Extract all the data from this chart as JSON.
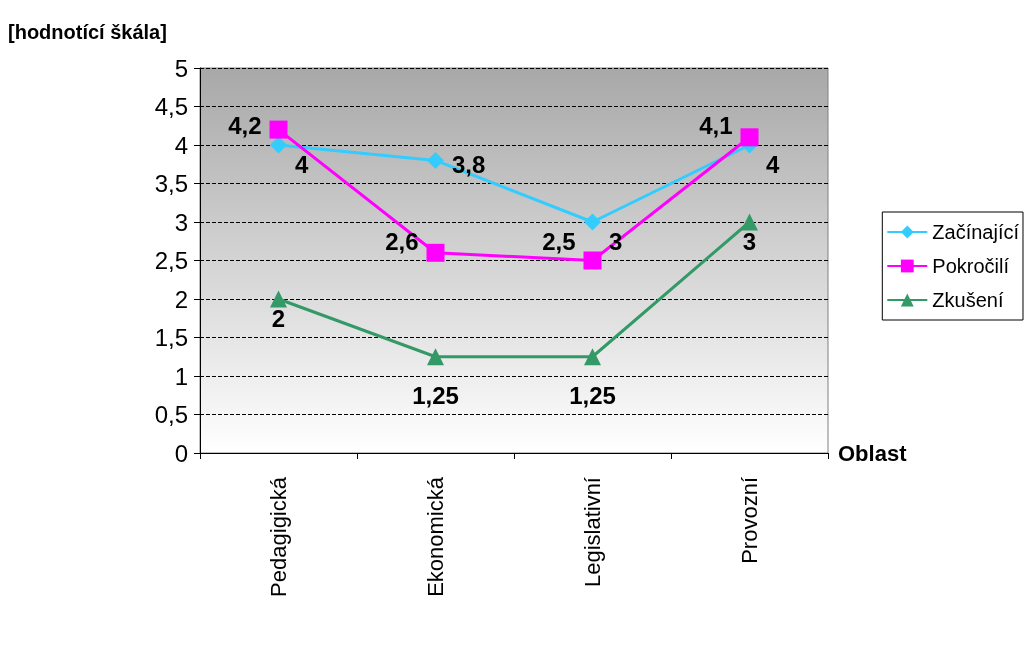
{
  "chart_data": {
    "type": "line",
    "ylabel": "[hodnotící škála]",
    "xlabel": "Oblast",
    "categories": [
      "Pedagigická",
      "Ekonomická",
      "Legislativní",
      "Provozní"
    ],
    "series": [
      {
        "name": "Začínající",
        "color": "#33ccff",
        "marker": "diamond",
        "values": [
          4,
          3.8,
          3,
          4
        ],
        "value_labels": [
          "4",
          "3,8",
          "3",
          "4"
        ]
      },
      {
        "name": "Pokročilí",
        "color": "#ff00ff",
        "marker": "square",
        "values": [
          4.2,
          2.6,
          2.5,
          4.1
        ],
        "value_labels": [
          "4,2",
          "2,6",
          "2,5",
          "4,1"
        ]
      },
      {
        "name": "Zkušení",
        "color": "#339966",
        "marker": "triangle",
        "values": [
          2,
          1.25,
          1.25,
          3
        ],
        "value_labels": [
          "2",
          "1,25",
          "1,25",
          "3"
        ]
      }
    ],
    "ylim": [
      0,
      5
    ],
    "yticks": [
      0,
      {
        "value": 0.5,
        "label": "0,5"
      },
      1,
      {
        "value": 1.5,
        "label": "1,5"
      },
      2,
      {
        "value": 2.5,
        "label": "2,5"
      },
      3,
      {
        "value": 3.5,
        "label": "3,5"
      },
      4,
      {
        "value": 4.5,
        "label": "4,5"
      },
      5
    ],
    "grid": "y",
    "legend": "right"
  }
}
